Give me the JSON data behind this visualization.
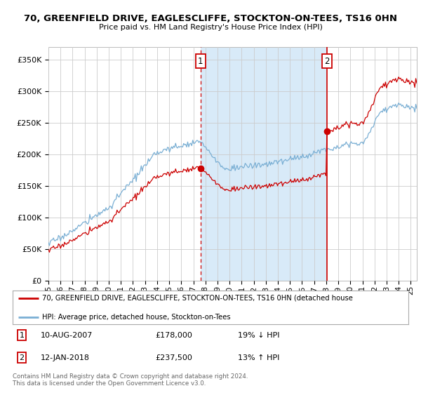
{
  "title": "70, GREENFIELD DRIVE, EAGLESCLIFFE, STOCKTON-ON-TEES, TS16 0HN",
  "subtitle": "Price paid vs. HM Land Registry's House Price Index (HPI)",
  "ylim": [
    0,
    370000
  ],
  "yticks": [
    0,
    50000,
    100000,
    150000,
    200000,
    250000,
    300000,
    350000
  ],
  "sale1": {
    "date_num": 2007.6,
    "price": 178000,
    "label": "1",
    "date_str": "10-AUG-2007",
    "price_str": "£178,000",
    "pct": "19% ↓ HPI"
  },
  "sale2": {
    "date_num": 2018.04,
    "price": 237500,
    "label": "2",
    "date_str": "12-JAN-2018",
    "price_str": "£237,500",
    "pct": "13% ↑ HPI"
  },
  "hpi_color": "#7aafd4",
  "price_color": "#cc0000",
  "marker_box_color": "#cc0000",
  "shade_color": "#d8eaf8",
  "bg_color": "#f0f0f0",
  "legend_line1": "70, GREENFIELD DRIVE, EAGLESCLIFFE, STOCKTON-ON-TEES, TS16 0HN (detached house",
  "legend_line2": "HPI: Average price, detached house, Stockton-on-Tees",
  "footnote": "Contains HM Land Registry data © Crown copyright and database right 2024.\nThis data is licensed under the Open Government Licence v3.0.",
  "xlim_start": 1995,
  "xlim_end": 2025.5
}
